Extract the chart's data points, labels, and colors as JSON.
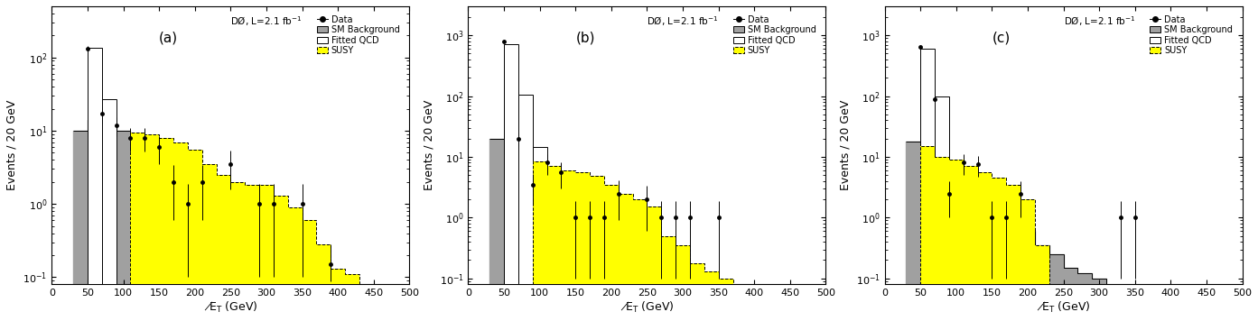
{
  "panels": [
    {
      "label": "(a)",
      "ylim": [
        0.08,
        500
      ],
      "xlim": [
        0,
        500
      ],
      "xticks": [
        0,
        50,
        100,
        150,
        200,
        250,
        300,
        350,
        400,
        450,
        500
      ],
      "bin_edges": [
        30,
        50,
        70,
        90,
        110,
        130,
        150,
        170,
        190,
        210,
        230,
        250,
        270,
        290,
        310,
        330,
        350,
        370,
        390,
        410,
        430,
        450,
        470,
        490
      ],
      "sm_bg": [
        10.0,
        14.0,
        12.0,
        10.0,
        7.5,
        5.5,
        4.0,
        2.8,
        1.8,
        1.2,
        1.0,
        0.8,
        0.5,
        0.35,
        0.25,
        0.18,
        0.13,
        0.1,
        0.08,
        0.0,
        0.0,
        0.0,
        0.0
      ],
      "qcd": [
        0.0,
        120.0,
        15.0,
        0.0,
        0.0,
        0.0,
        0.0,
        0.0,
        0.0,
        0.0,
        0.0,
        0.0,
        0.0,
        0.0,
        0.0,
        0.0,
        0.0,
        0.0,
        0.0,
        0.0,
        0.0,
        0.0,
        0.0
      ],
      "susy": [
        0.0,
        0.0,
        0.0,
        0.0,
        9.5,
        9.0,
        8.0,
        7.0,
        5.5,
        3.5,
        2.5,
        2.0,
        1.8,
        1.8,
        1.3,
        0.9,
        0.6,
        0.28,
        0.13,
        0.11,
        0.0,
        0.0,
        0.0
      ],
      "data_x": [
        50,
        70,
        90,
        110,
        130,
        150,
        170,
        190,
        210,
        250,
        290,
        310,
        350,
        390
      ],
      "data_y": [
        130.0,
        17.0,
        12.0,
        8.0,
        8.0,
        6.0,
        2.0,
        1.0,
        2.0,
        3.5,
        1.0,
        1.0,
        1.0,
        0.15
      ],
      "data_yerr_lo": [
        13.0,
        4.5,
        3.5,
        2.8,
        2.8,
        2.5,
        1.4,
        0.9,
        1.4,
        1.9,
        0.9,
        0.9,
        0.9,
        0.13
      ],
      "data_yerr_hi": [
        13.0,
        4.5,
        3.5,
        2.8,
        2.8,
        2.5,
        1.4,
        0.9,
        1.4,
        1.9,
        0.9,
        0.9,
        0.9,
        0.13
      ]
    },
    {
      "label": "(b)",
      "ylim": [
        0.08,
        3000
      ],
      "xlim": [
        0,
        500
      ],
      "xticks": [
        0,
        50,
        100,
        150,
        200,
        250,
        300,
        350,
        400,
        450,
        500
      ],
      "bin_edges": [
        30,
        50,
        70,
        90,
        110,
        130,
        150,
        170,
        190,
        210,
        230,
        250,
        270,
        290,
        310,
        330,
        350,
        370,
        390,
        410,
        430,
        450,
        470,
        490
      ],
      "sm_bg": [
        20.0,
        11.0,
        7.0,
        4.5,
        3.0,
        2.0,
        1.3,
        0.8,
        0.5,
        0.35,
        0.25,
        0.18,
        0.13,
        0.1,
        0.08,
        0.0,
        0.0,
        0.0,
        0.0,
        0.0,
        0.0,
        0.0,
        0.0
      ],
      "qcd": [
        0.0,
        700.0,
        100.0,
        10.0,
        0.0,
        0.0,
        0.0,
        0.0,
        0.0,
        0.0,
        0.0,
        0.0,
        0.0,
        0.0,
        0.0,
        0.0,
        0.0,
        0.0,
        0.0,
        0.0,
        0.0,
        0.0,
        0.0
      ],
      "susy": [
        0.0,
        0.0,
        0.0,
        8.5,
        7.0,
        6.0,
        5.5,
        4.8,
        3.5,
        2.5,
        2.0,
        1.5,
        0.5,
        0.35,
        0.18,
        0.13,
        0.1,
        0.0,
        0.0,
        0.0,
        0.0,
        0.0,
        0.0
      ],
      "data_x": [
        50,
        70,
        90,
        110,
        130,
        150,
        170,
        190,
        210,
        250,
        270,
        290,
        310,
        350
      ],
      "data_y": [
        800.0,
        20.0,
        3.5,
        8.0,
        5.5,
        1.0,
        1.0,
        1.0,
        2.5,
        2.0,
        1.0,
        1.0,
        1.0,
        1.0
      ],
      "data_yerr_lo": [
        35.0,
        5.0,
        1.8,
        3.0,
        2.5,
        0.9,
        0.9,
        0.9,
        1.6,
        1.4,
        0.9,
        0.9,
        0.9,
        0.9
      ],
      "data_yerr_hi": [
        35.0,
        5.0,
        1.8,
        3.0,
        2.5,
        0.9,
        0.9,
        0.9,
        1.6,
        1.4,
        0.9,
        0.9,
        0.9,
        0.9
      ]
    },
    {
      "label": "(c)",
      "ylim": [
        0.08,
        3000
      ],
      "xlim": [
        0,
        500
      ],
      "xticks": [
        0,
        50,
        100,
        150,
        200,
        250,
        300,
        350,
        400,
        450,
        500
      ],
      "bin_edges": [
        30,
        50,
        70,
        90,
        110,
        130,
        150,
        170,
        190,
        210,
        230,
        250,
        270,
        290,
        310,
        330,
        350,
        370,
        390,
        410,
        430,
        450,
        470,
        490
      ],
      "sm_bg": [
        18.0,
        10.0,
        7.5,
        5.5,
        4.0,
        3.0,
        2.0,
        1.2,
        0.6,
        0.35,
        0.25,
        0.15,
        0.12,
        0.1,
        0.0,
        0.0,
        0.0,
        0.0,
        0.0,
        0.0,
        0.0,
        0.0,
        0.0
      ],
      "qcd": [
        0.0,
        600.0,
        90.0,
        0.0,
        0.0,
        0.0,
        0.0,
        0.0,
        0.0,
        0.0,
        0.0,
        0.0,
        0.0,
        0.0,
        0.0,
        0.0,
        0.0,
        0.0,
        0.0,
        0.0,
        0.0,
        0.0,
        0.0
      ],
      "susy": [
        0.0,
        15.0,
        10.0,
        9.0,
        7.0,
        5.5,
        4.5,
        3.5,
        2.0,
        0.35,
        0.0,
        0.0,
        0.0,
        0.0,
        0.0,
        0.0,
        0.0,
        0.0,
        0.0,
        0.0,
        0.0,
        0.0,
        0.0
      ],
      "data_x": [
        50,
        70,
        90,
        110,
        130,
        150,
        170,
        190,
        330,
        350
      ],
      "data_y": [
        650.0,
        90.0,
        2.5,
        8.0,
        7.5,
        1.0,
        1.0,
        2.5,
        1.0,
        1.0
      ],
      "data_yerr_lo": [
        32.0,
        12.0,
        1.5,
        3.0,
        2.8,
        0.9,
        0.9,
        1.5,
        0.9,
        0.9
      ],
      "data_yerr_hi": [
        32.0,
        12.0,
        1.5,
        3.0,
        2.8,
        0.9,
        0.9,
        1.5,
        0.9,
        0.9
      ]
    }
  ],
  "sm_color": "#a0a0a0",
  "susy_color": "#ffff00",
  "ylabel": "Events / 20 GeV",
  "lumi_text": "DØ, L=2.1 fb$^{-1}$"
}
